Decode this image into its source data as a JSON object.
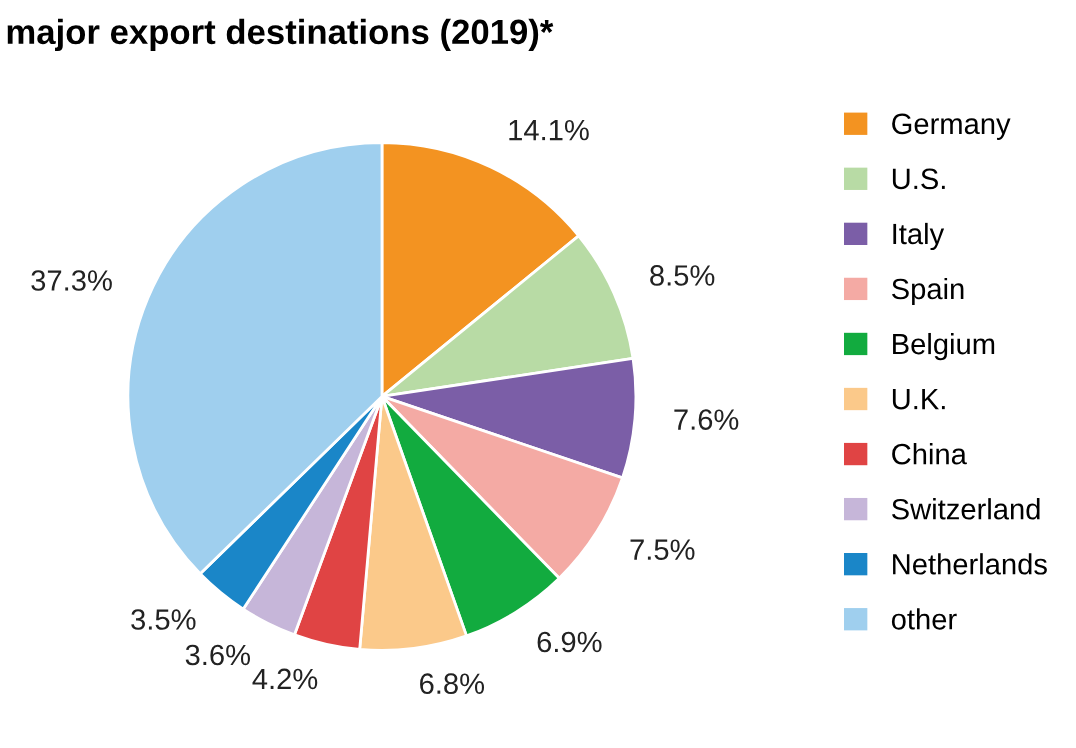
{
  "chart_data": {
    "type": "pie",
    "title": "major export destinations (2019)*",
    "categories": [
      "Germany",
      "U.S.",
      "Italy",
      "Spain",
      "Belgium",
      "U.K.",
      "China",
      "Switzerland",
      "Netherlands",
      "other"
    ],
    "values": [
      14.1,
      8.5,
      7.6,
      7.5,
      6.9,
      6.8,
      4.2,
      3.6,
      3.5,
      37.3
    ],
    "value_labels": [
      "14.1%",
      "8.5%",
      "7.6%",
      "7.5%",
      "6.9%",
      "6.8%",
      "4.2%",
      "3.6%",
      "3.5%",
      "37.3%"
    ],
    "colors": [
      "#f39321",
      "#b8dba5",
      "#7b5ea7",
      "#f4aaa4",
      "#12ab3f",
      "#fbc98a",
      "#e04444",
      "#c6b6d9",
      "#1a86c8",
      "#9fcfee"
    ],
    "legend": "right"
  }
}
